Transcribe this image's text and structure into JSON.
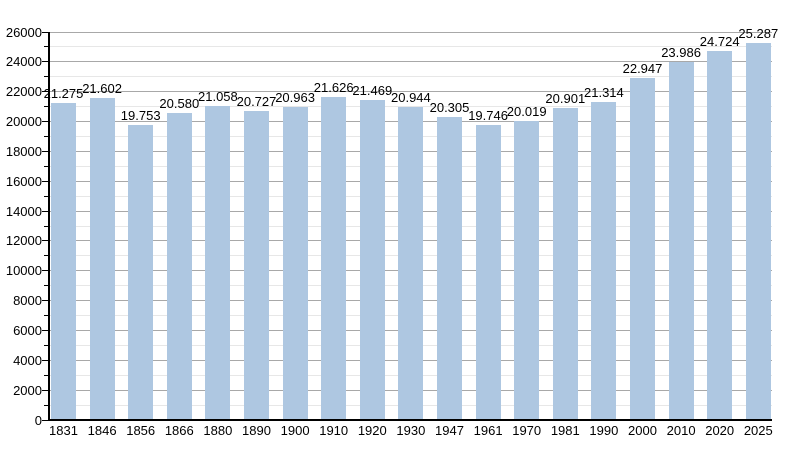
{
  "chart_data": {
    "type": "bar",
    "title": "",
    "xlabel": "",
    "ylabel": "",
    "categories": [
      "1831",
      "1846",
      "1856",
      "1866",
      "1880",
      "1890",
      "1900",
      "1910",
      "1920",
      "1930",
      "1947",
      "1961",
      "1970",
      "1981",
      "1990",
      "2000",
      "2010",
      "2020",
      "2025"
    ],
    "values": [
      21275,
      21602,
      19753,
      20580,
      21058,
      20727,
      20963,
      21626,
      21469,
      20944,
      20305,
      19746,
      20019,
      20901,
      21314,
      22947,
      23986,
      24724,
      25287
    ],
    "value_labels": [
      "21.275",
      "21.602",
      "19.753",
      "20.580",
      "21.058",
      "20.727",
      "20.963",
      "21.626",
      "21.469",
      "20.944",
      "20.305",
      "19.746",
      "20.019",
      "20.901",
      "21.314",
      "22.947",
      "23.986",
      "24.724",
      "25.287"
    ],
    "y_tick_labels": [
      "0",
      "2000",
      "4000",
      "6000",
      "8000",
      "10000",
      "12000",
      "14000",
      "16000",
      "18000",
      "20000",
      "22000",
      "24000",
      "26000"
    ],
    "ylim": [
      0,
      26000
    ],
    "y_major_step": 2000,
    "y_minor_step": 1000,
    "grid": true,
    "legend": null,
    "colors": {
      "bar_fill": "#aec7e1",
      "major_gridline": "#a8a8a8",
      "minor_gridline": "#e7e7e7",
      "axis": "#000000",
      "text": "#000000",
      "background": "#ffffff"
    }
  }
}
